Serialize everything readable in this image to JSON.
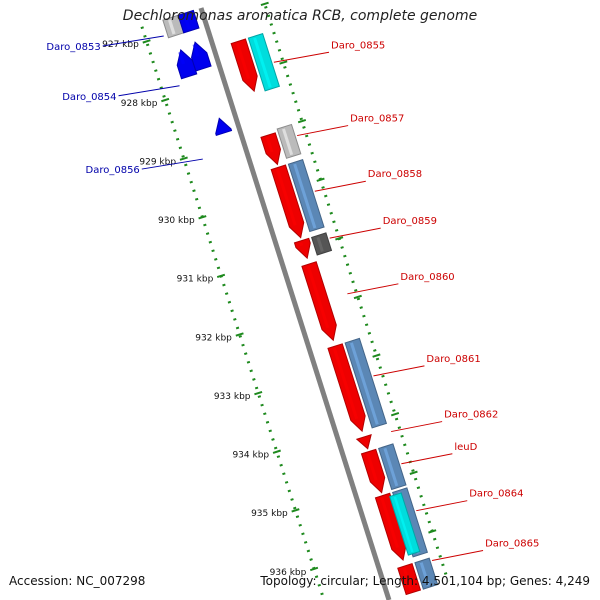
{
  "title": "Dechloromonas aromatica RCB, complete genome",
  "footer": {
    "accession": "Accession: NC_007298",
    "stats": "Topology: circular; Length: 4,501,104 bp; Genes: 4,249"
  },
  "colors": {
    "reverse_label": "#0000aa",
    "forward_label": "#cc0000",
    "cds_forward": "#ee0000",
    "cds_reverse": "#0000ee",
    "rna": "#00dddd",
    "blast_hit": "#5b87b5",
    "other": "#bbbbbb",
    "dark": "#555555",
    "backbone": "#808080",
    "ticks": "#1e8a1e"
  },
  "map": {
    "kbp_start": 926.75,
    "kbp_end": 936.85,
    "ticks": [
      "927 kbp",
      "928 kbp",
      "929 kbp",
      "930 kbp",
      "931 kbp",
      "932 kbp",
      "933 kbp",
      "934 kbp",
      "935 kbp",
      "936 kbp"
    ],
    "features": [
      {
        "track": "rev-outer",
        "start": 926.75,
        "end": 927.05,
        "type": "other"
      },
      {
        "track": "rev-inner",
        "start": 926.75,
        "end": 927.05,
        "type": "cds_reverse"
      },
      {
        "track": "rev-outer",
        "start": 927.3,
        "end": 927.75,
        "type": "cds_reverse",
        "arrow": true
      },
      {
        "track": "rev-inner",
        "start": 927.25,
        "end": 927.7,
        "type": "cds_reverse",
        "arrow": true
      },
      {
        "track": "rev-inner",
        "start": 928.55,
        "end": 928.8,
        "type": "cds_reverse",
        "arrow": true
      },
      {
        "track": "fwd-inner",
        "start": 927.45,
        "end": 928.3,
        "type": "cds_forward",
        "arrow": true
      },
      {
        "track": "fwd-outer",
        "start": 927.45,
        "end": 928.35,
        "type": "rna"
      },
      {
        "track": "fwd-inner",
        "start": 929.05,
        "end": 929.55,
        "type": "cds_forward",
        "arrow": true
      },
      {
        "track": "fwd-outer",
        "start": 929.0,
        "end": 929.5,
        "type": "other"
      },
      {
        "track": "fwd-inner",
        "start": 929.6,
        "end": 930.8,
        "type": "cds_forward",
        "arrow": true
      },
      {
        "track": "fwd-outer",
        "start": 929.6,
        "end": 930.75,
        "type": "blast_hit"
      },
      {
        "track": "fwd-inner",
        "start": 930.85,
        "end": 931.15,
        "type": "cds_forward",
        "arrow": true
      },
      {
        "track": "fwd-outer",
        "start": 930.85,
        "end": 931.15,
        "type": "dark"
      },
      {
        "track": "fwd-inner",
        "start": 931.25,
        "end": 932.55,
        "type": "cds_forward",
        "arrow": true
      },
      {
        "track": "fwd-inner",
        "start": 932.65,
        "end": 934.1,
        "type": "cds_forward",
        "arrow": true
      },
      {
        "track": "fwd-outer",
        "start": 932.65,
        "end": 934.1,
        "type": "blast_hit"
      },
      {
        "track": "fwd-inner",
        "start": 934.2,
        "end": 934.4,
        "type": "cds_forward",
        "arrow": true
      },
      {
        "track": "fwd-inner",
        "start": 934.45,
        "end": 935.15,
        "type": "cds_forward",
        "arrow": true
      },
      {
        "track": "fwd-outer",
        "start": 934.45,
        "end": 935.15,
        "type": "blast_hit"
      },
      {
        "track": "fwd-inner",
        "start": 935.2,
        "end": 936.3,
        "type": "cds_forward",
        "arrow": true
      },
      {
        "track": "fwd-outer",
        "start": 935.2,
        "end": 936.3,
        "type": "blast_hit"
      },
      {
        "track": "fwd-outer-r",
        "start": 935.25,
        "end": 936.25,
        "type": "rna"
      },
      {
        "track": "fwd-inner",
        "start": 936.4,
        "end": 936.85,
        "type": "cds_forward"
      },
      {
        "track": "fwd-outer",
        "start": 936.4,
        "end": 936.85,
        "type": "blast_hit"
      }
    ],
    "labels": [
      {
        "text": "Daro_0853",
        "side": "left",
        "kbp": 927.0
      },
      {
        "text": "Daro_0854",
        "side": "left",
        "kbp": 927.85
      },
      {
        "text": "Daro_0856",
        "side": "left",
        "kbp": 929.1
      },
      {
        "text": "Daro_0855",
        "side": "right",
        "kbp": 927.95
      },
      {
        "text": "Daro_0857",
        "side": "right",
        "kbp": 929.2
      },
      {
        "text": "Daro_0858",
        "side": "right",
        "kbp": 930.15
      },
      {
        "text": "Daro_0859",
        "side": "right",
        "kbp": 930.95
      },
      {
        "text": "Daro_0860",
        "side": "right",
        "kbp": 931.9
      },
      {
        "text": "Daro_0861",
        "side": "right",
        "kbp": 933.3
      },
      {
        "text": "Daro_0862",
        "side": "right",
        "kbp": 934.25
      },
      {
        "text": "leuD",
        "side": "right",
        "kbp": 934.8
      },
      {
        "text": "Daro_0864",
        "side": "right",
        "kbp": 935.6
      },
      {
        "text": "Daro_0865",
        "side": "right",
        "kbp": 936.45
      }
    ]
  }
}
